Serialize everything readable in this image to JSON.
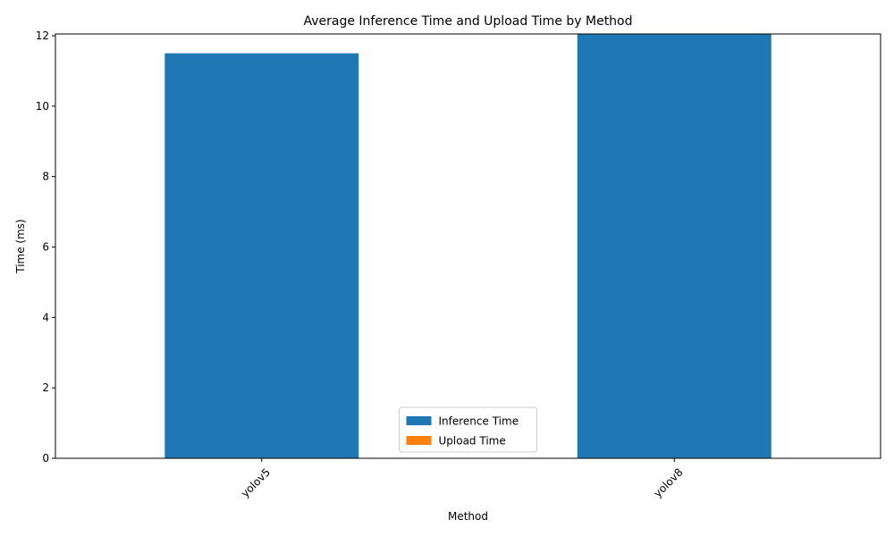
{
  "chart_data": {
    "type": "bar",
    "stacked": true,
    "title": "Average Inference Time and Upload Time by Method",
    "xlabel": "Method",
    "ylabel": "Time (ms)",
    "categories": [
      "yolov5",
      "yolov8"
    ],
    "series": [
      {
        "name": "Inference Time",
        "color": "#1f77b4",
        "values": [
          11.5,
          12.05
        ]
      },
      {
        "name": "Upload Time",
        "color": "#ff7f0e",
        "values": [
          0,
          0
        ]
      }
    ],
    "ylim": [
      0,
      12.05
    ],
    "yticks": [
      0,
      2,
      4,
      6,
      8,
      10,
      12
    ],
    "grid": false,
    "legend_position": "bottom-center",
    "xtick_rotation": 45
  }
}
